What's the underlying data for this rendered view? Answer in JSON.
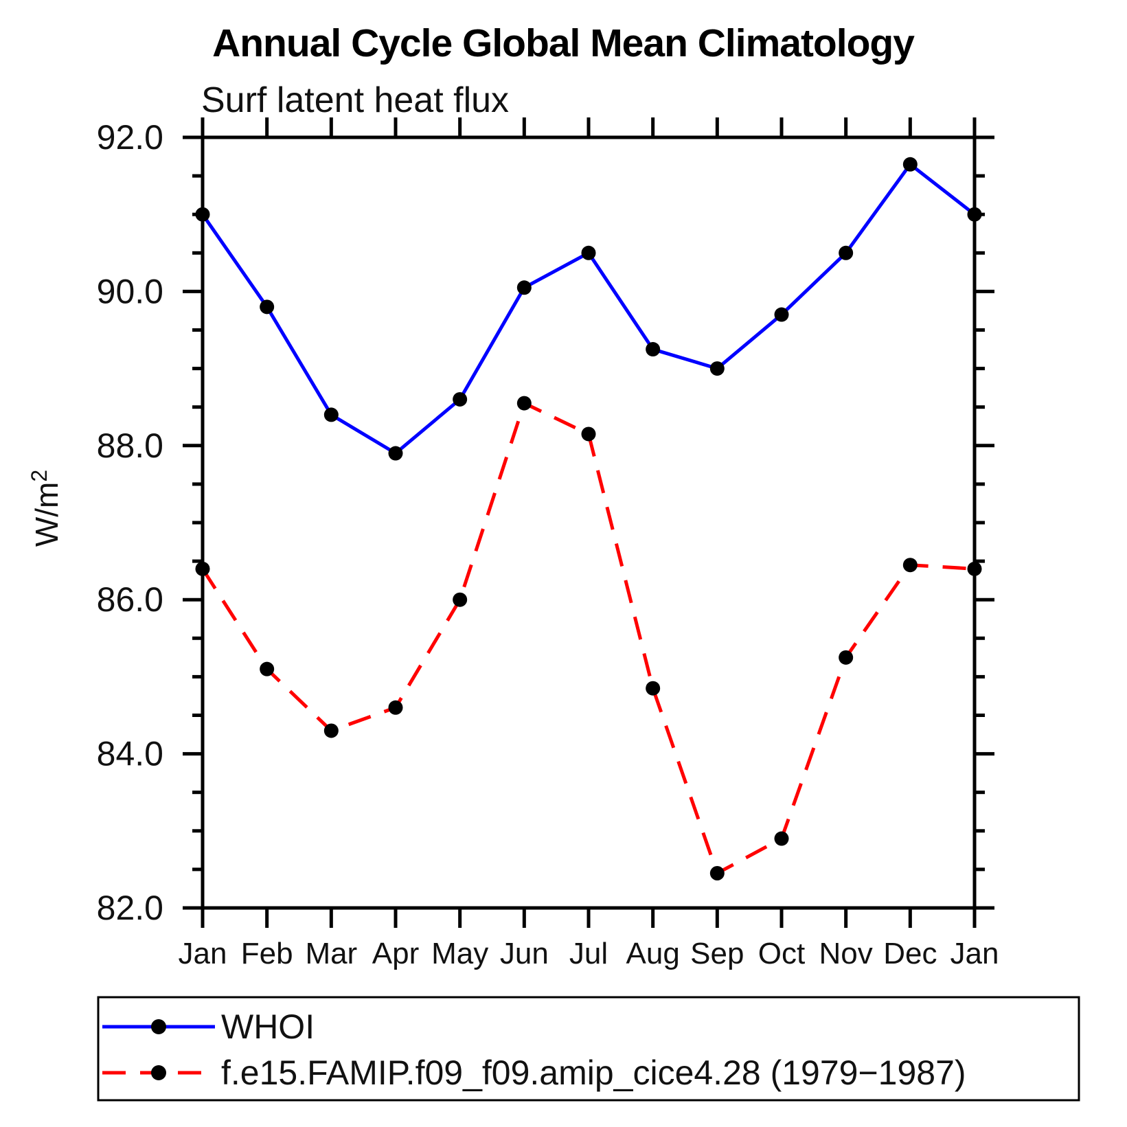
{
  "chart_data": {
    "type": "line",
    "title": "Annual Cycle Global Mean Climatology",
    "subtitle": "Surf latent heat flux",
    "xlabel": "",
    "ylabel": "W/m²",
    "ylabel_base": "W/m",
    "ylabel_exponent": "2",
    "categories": [
      "Jan",
      "Feb",
      "Mar",
      "Apr",
      "May",
      "Jun",
      "Jul",
      "Aug",
      "Sep",
      "Oct",
      "Nov",
      "Dec",
      "Jan"
    ],
    "series": [
      {
        "name": "WHOI",
        "color": "#0000ff",
        "line_style": "solid",
        "marker": "filled-black-circle",
        "values": [
          91.0,
          89.8,
          88.4,
          87.9,
          88.6,
          90.05,
          90.5,
          89.25,
          89.0,
          89.7,
          90.5,
          91.65,
          91.0
        ]
      },
      {
        "name": "f.e15.FAMIP.f09_f09.amip_cice4.28 (1979−1987)",
        "color": "#ff0000",
        "line_style": "dashed",
        "marker": "filled-black-circle",
        "values": [
          86.4,
          85.1,
          84.3,
          84.6,
          86.0,
          88.55,
          88.15,
          84.85,
          82.45,
          82.9,
          85.25,
          86.45,
          86.4
        ]
      }
    ],
    "ylim": [
      82.0,
      92.0
    ],
    "ytick_major_step": 2.0,
    "ytick_minor_step": 0.5,
    "ytick_labels": [
      "82.0",
      "84.0",
      "86.0",
      "88.0",
      "90.0",
      "92.0"
    ],
    "grid": false,
    "tick_direction": "outward",
    "legend_position": "bottom-left-box",
    "marker_color": "#000000",
    "axis_color": "#000000",
    "background_color": "#ffffff"
  }
}
